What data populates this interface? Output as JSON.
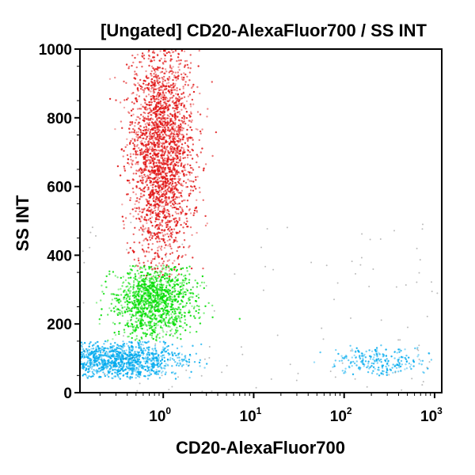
{
  "chart_data": {
    "type": "scatter",
    "title": "[Ungated] CD20-AlexaFluor700 / SS INT",
    "xlabel": "CD20-AlexaFluor700",
    "ylabel": "SS INT",
    "x_scale": "log",
    "xlim": [
      0.12,
      1200
    ],
    "ylim": [
      0,
      1000
    ],
    "x_ticks": [
      {
        "value": 1,
        "base": "10",
        "exp": "0"
      },
      {
        "value": 10,
        "base": "10",
        "exp": "1"
      },
      {
        "value": 100,
        "base": "10",
        "exp": "2"
      },
      {
        "value": 1000,
        "base": "10",
        "exp": "3"
      }
    ],
    "y_ticks": [
      0,
      200,
      400,
      600,
      800,
      1000
    ],
    "grid": false,
    "legend": "none",
    "populations": [
      {
        "color": "#e01010",
        "x_center": 0.95,
        "x_spread_decades": 0.17,
        "y_center": 700,
        "y_spread": 170,
        "y_range": [
          330,
          1000
        ]
      },
      {
        "color": "#00dd00",
        "x_center": 0.8,
        "x_spread_decades": 0.22,
        "y_center": 265,
        "y_spread": 55,
        "y_range": [
          150,
          370
        ]
      },
      {
        "color": "#00aaee",
        "x_center": 0.32,
        "x_spread_decades": 0.35,
        "y_center": 95,
        "y_spread": 30,
        "y_range": [
          40,
          150
        ]
      },
      {
        "color": "#00aaee",
        "x_center": 250,
        "x_spread_decades": 0.25,
        "y_center": 90,
        "y_spread": 25,
        "y_range": [
          50,
          140
        ]
      }
    ]
  }
}
